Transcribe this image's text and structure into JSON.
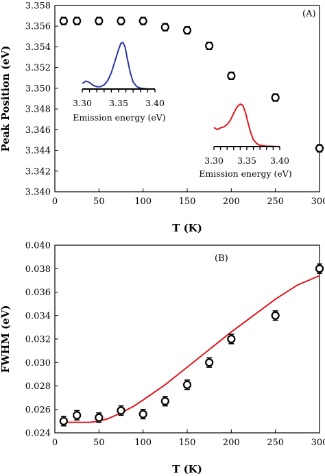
{
  "chart_data": [
    {
      "type": "scatter",
      "panel_label": "(A)",
      "xlabel": "T  (K)",
      "ylabel": "Peak Position (eV)",
      "xlim": [
        0,
        300
      ],
      "ylim": [
        3.34,
        3.358
      ],
      "xticks": [
        0,
        50,
        100,
        150,
        200,
        250,
        300
      ],
      "yticks": [
        3.34,
        3.342,
        3.344,
        3.346,
        3.348,
        3.35,
        3.352,
        3.354,
        3.356,
        3.358
      ],
      "ytick_labels": [
        "3.340",
        "3.342",
        "3.344",
        "3.346",
        "3.348",
        "3.350",
        "3.352",
        "3.354",
        "3.356",
        "3.358"
      ],
      "grid": false,
      "series": [
        {
          "marker": "open-circle",
          "x": [
            10,
            25,
            50,
            75,
            100,
            125,
            150,
            175,
            200,
            250,
            300
          ],
          "y": [
            3.3565,
            3.3565,
            3.3565,
            3.3565,
            3.3565,
            3.3559,
            3.3556,
            3.3541,
            3.3512,
            3.3491,
            3.3442
          ],
          "err": [
            0.00035,
            0.00035,
            0.00035,
            0.00035,
            0.00035,
            0.00035,
            0.00035,
            0.00035,
            0.00035,
            0.00035,
            0.00035
          ]
        }
      ],
      "insets": [
        {
          "xlabel": "Emission energy (eV)",
          "xticks": [
            3.3,
            3.35,
            3.4
          ],
          "xtick_labels": [
            "3.30",
            "3.35",
            "3.40"
          ],
          "xlim": [
            3.3,
            3.4
          ],
          "color": "#2b35a0",
          "curve": [
            [
              3.3,
              0.12
            ],
            [
              3.305,
              0.17
            ],
            [
              3.31,
              0.14
            ],
            [
              3.315,
              0.08
            ],
            [
              3.32,
              0.05
            ],
            [
              3.325,
              0.05
            ],
            [
              3.33,
              0.09
            ],
            [
              3.335,
              0.18
            ],
            [
              3.34,
              0.35
            ],
            [
              3.345,
              0.6
            ],
            [
              3.35,
              0.85
            ],
            [
              3.353,
              0.98
            ],
            [
              3.356,
              1.0
            ],
            [
              3.359,
              0.9
            ],
            [
              3.362,
              0.65
            ],
            [
              3.366,
              0.35
            ],
            [
              3.37,
              0.15
            ],
            [
              3.375,
              0.05
            ],
            [
              3.38,
              0.02
            ],
            [
              3.39,
              0.0
            ],
            [
              3.4,
              0.0
            ]
          ]
        },
        {
          "xlabel": "Emission energy (eV)",
          "xticks": [
            3.3,
            3.35,
            3.4
          ],
          "xtick_labels": [
            "3.30",
            "3.35",
            "3.40"
          ],
          "xlim": [
            3.3,
            3.4
          ],
          "color": "#e0141e",
          "curve": [
            [
              3.3,
              0.45
            ],
            [
              3.305,
              0.4
            ],
            [
              3.31,
              0.44
            ],
            [
              3.315,
              0.46
            ],
            [
              3.32,
              0.52
            ],
            [
              3.325,
              0.62
            ],
            [
              3.33,
              0.78
            ],
            [
              3.335,
              0.93
            ],
            [
              3.34,
              1.0
            ],
            [
              3.344,
              0.97
            ],
            [
              3.348,
              0.8
            ],
            [
              3.352,
              0.55
            ],
            [
              3.356,
              0.32
            ],
            [
              3.36,
              0.16
            ],
            [
              3.365,
              0.07
            ],
            [
              3.37,
              0.03
            ],
            [
              3.38,
              0.01
            ],
            [
              3.4,
              0.0
            ]
          ]
        }
      ]
    },
    {
      "type": "scatter",
      "panel_label": "(B)",
      "xlabel": "T  (K)",
      "ylabel": "FWHM (eV)",
      "xlim": [
        0,
        300
      ],
      "ylim": [
        0.024,
        0.04
      ],
      "xticks": [
        0,
        50,
        100,
        150,
        200,
        250,
        300
      ],
      "yticks": [
        0.024,
        0.026,
        0.028,
        0.03,
        0.032,
        0.034,
        0.036,
        0.038,
        0.04
      ],
      "ytick_labels": [
        "0.024",
        "0.026",
        "0.028",
        "0.030",
        "0.032",
        "0.034",
        "0.036",
        "0.038",
        "0.040"
      ],
      "grid": false,
      "series": [
        {
          "marker": "open-circle",
          "x": [
            10,
            25,
            50,
            75,
            100,
            125,
            150,
            175,
            200,
            250,
            300
          ],
          "y": [
            0.025,
            0.0255,
            0.0253,
            0.0259,
            0.0256,
            0.0267,
            0.0281,
            0.03,
            0.032,
            0.034,
            0.038
          ],
          "err": [
            0.0004,
            0.0004,
            0.0004,
            0.0004,
            0.0004,
            0.0004,
            0.0004,
            0.0004,
            0.0004,
            0.0004,
            0.0004
          ]
        },
        {
          "type": "line",
          "color": "#e0141e",
          "x": [
            10,
            25,
            40,
            50,
            60,
            75,
            90,
            100,
            125,
            150,
            175,
            200,
            225,
            250,
            275,
            300
          ],
          "y": [
            0.0249,
            0.0249,
            0.0249,
            0.025,
            0.0252,
            0.0257,
            0.0263,
            0.0268,
            0.0281,
            0.0296,
            0.0311,
            0.0326,
            0.034,
            0.0354,
            0.0366,
            0.0374
          ]
        }
      ]
    }
  ]
}
